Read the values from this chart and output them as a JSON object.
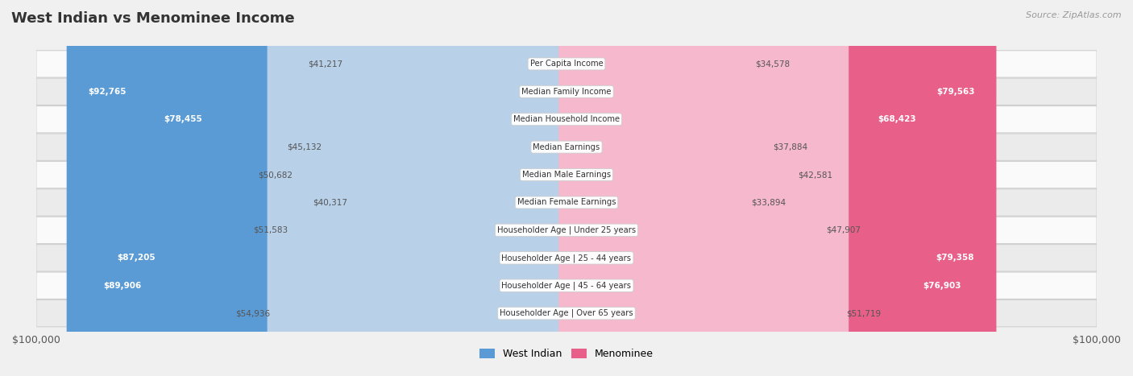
{
  "title": "West Indian vs Menominee Income",
  "source": "Source: ZipAtlas.com",
  "categories": [
    "Per Capita Income",
    "Median Family Income",
    "Median Household Income",
    "Median Earnings",
    "Median Male Earnings",
    "Median Female Earnings",
    "Householder Age | Under 25 years",
    "Householder Age | 25 - 44 years",
    "Householder Age | 45 - 64 years",
    "Householder Age | Over 65 years"
  ],
  "west_indian": [
    41217,
    92765,
    78455,
    45132,
    50682,
    40317,
    51583,
    87205,
    89906,
    54936
  ],
  "menominee": [
    34578,
    79563,
    68423,
    37884,
    42581,
    33894,
    47907,
    79358,
    76903,
    51719
  ],
  "max_val": 100000,
  "wi_color_light": "#b8d0e8",
  "wi_color_dark": "#5b9bd5",
  "men_color_light": "#f5b8cc",
  "men_color_dark": "#e8608a",
  "bg_color": "#f0f0f0",
  "row_bg_even": "#fafafa",
  "row_bg_odd": "#ebebeb",
  "row_border": "#d0d0d0",
  "text_dark": "#333333",
  "text_mid": "#555555",
  "text_white": "#ffffff",
  "source_color": "#999999",
  "wi_threshold": 0.6,
  "men_threshold": 0.6,
  "legend_label_wi": "West Indian",
  "legend_label_men": "Menominee"
}
